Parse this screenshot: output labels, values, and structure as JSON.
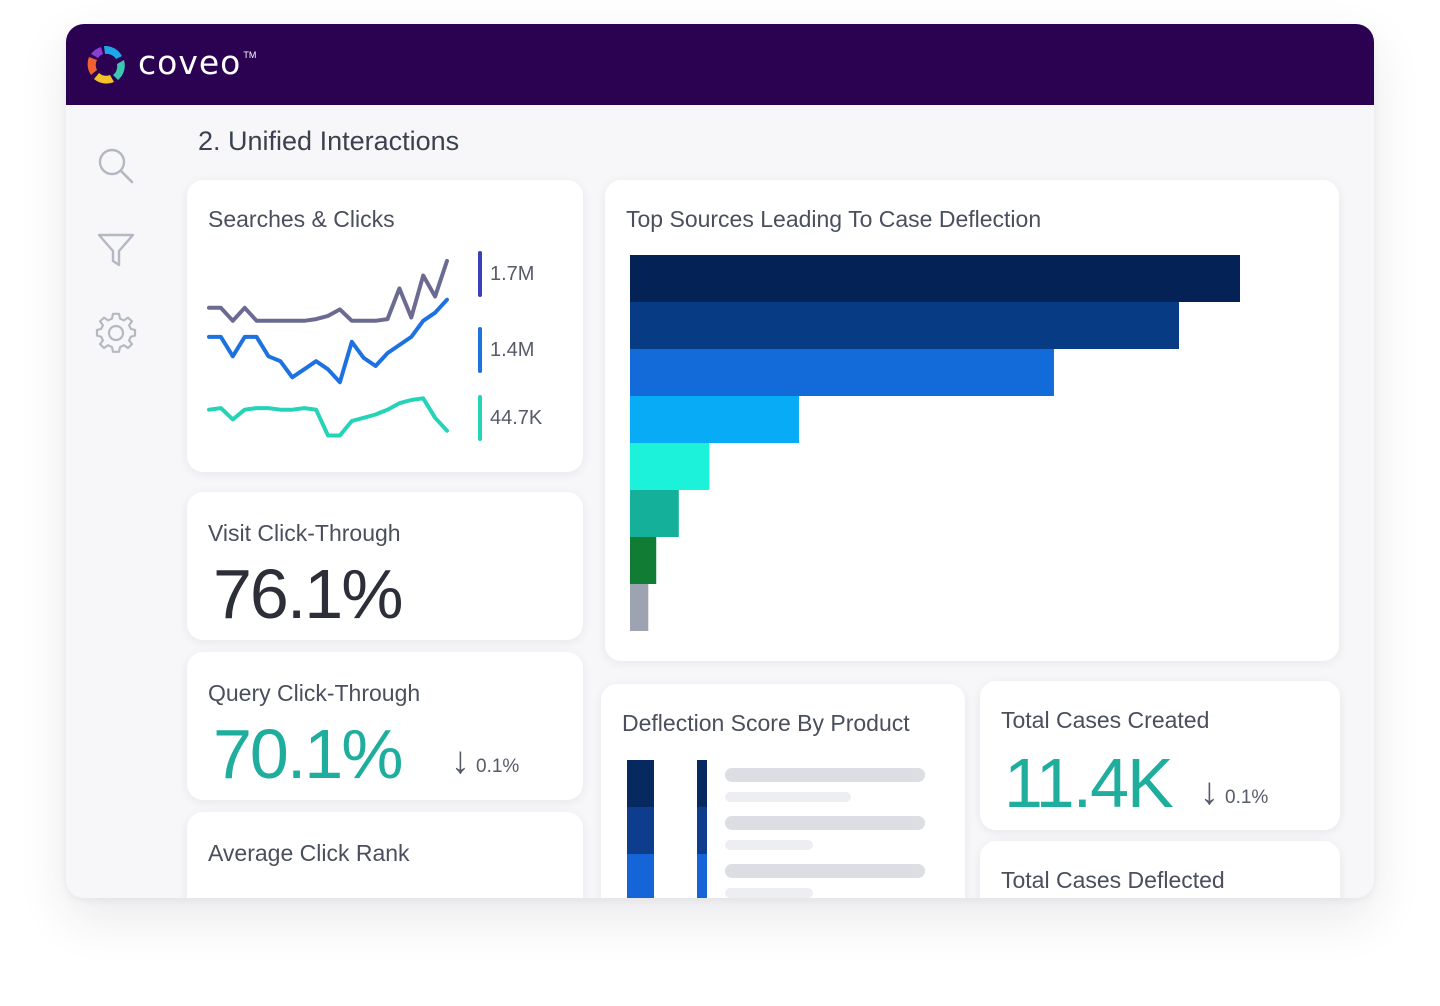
{
  "app": {
    "brand": "coveo",
    "trademark": "TM",
    "page_title": "2. Unified Interactions"
  },
  "sidebar": {
    "icons": [
      "search-icon",
      "filter-icon",
      "gear-icon"
    ]
  },
  "searches_clicks": {
    "title": "Searches & Clicks",
    "legend": [
      {
        "label": "1.7M",
        "color": "#3b3fb8"
      },
      {
        "label": "1.4M",
        "color": "#1e72e0"
      },
      {
        "label": "44.7K",
        "color": "#25d3b8"
      }
    ]
  },
  "visit_ctr": {
    "title": "Visit Click-Through",
    "value": "76.1%"
  },
  "query_ctr": {
    "title": "Query Click-Through",
    "value": "70.1%",
    "delta_arrow": "↓",
    "delta": "0.1%"
  },
  "avg_click_rank": {
    "title": "Average Click Rank"
  },
  "top_sources": {
    "title": "Top Sources Leading To Case Deflection"
  },
  "deflection_by_product": {
    "title": "Deflection Score By Product"
  },
  "total_cases_created": {
    "title": "Total Cases Created",
    "value": "11.4K",
    "delta_arrow": "↓",
    "delta": "0.1%"
  },
  "total_cases_deflected": {
    "title": "Total Cases Deflected"
  },
  "colors": {
    "header": "#2b0152",
    "teal": "#1fae9d",
    "line_purple": "#6b6a92",
    "line_blue": "#1e72e0",
    "line_teal": "#25d3b8"
  },
  "chart_data": [
    {
      "type": "line",
      "title": "Searches & Clicks",
      "x": [
        0,
        1,
        2,
        3,
        4,
        5,
        6,
        7,
        8,
        9,
        10,
        11,
        12,
        13,
        14,
        15,
        16,
        17,
        18,
        19,
        20
      ],
      "series": [
        {
          "name": "1.7M",
          "values": [
            0.63,
            0.63,
            0.55,
            0.63,
            0.55,
            0.55,
            0.55,
            0.55,
            0.55,
            0.56,
            0.58,
            0.62,
            0.55,
            0.55,
            0.55,
            0.56,
            0.75,
            0.57,
            0.83,
            0.7,
            0.92
          ]
        },
        {
          "name": "1.4M",
          "values": [
            0.45,
            0.45,
            0.33,
            0.45,
            0.45,
            0.33,
            0.3,
            0.2,
            0.25,
            0.3,
            0.25,
            0.17,
            0.42,
            0.32,
            0.27,
            0.35,
            0.4,
            0.45,
            0.55,
            0.6,
            0.68
          ]
        },
        {
          "name": "44.7K",
          "values": [
            0.0,
            0.01,
            -0.06,
            0.0,
            0.01,
            0.01,
            0.0,
            0.0,
            0.01,
            0.0,
            -0.16,
            -0.16,
            -0.07,
            -0.05,
            -0.03,
            0.0,
            0.04,
            0.06,
            0.07,
            -0.05,
            -0.13
          ]
        }
      ],
      "ylim": [
        -0.2,
        1.0
      ]
    },
    {
      "type": "bar",
      "orientation": "horizontal",
      "title": "Top Sources Leading To Case Deflection",
      "values": [
        100,
        90,
        69.5,
        27.7,
        13,
        8,
        4.3,
        3
      ],
      "colors": [
        "#052256",
        "#073c85",
        "#136ad9",
        "#08abf6",
        "#1bf2d9",
        "#14b09a",
        "#117c34",
        "#9da3b0"
      ],
      "xlim": [
        0,
        100
      ]
    },
    {
      "type": "bar",
      "orientation": "vertical-stacked",
      "title": "Deflection Score By Product",
      "series": [
        {
          "name": "segment-1",
          "values": [
            1,
            1
          ],
          "color": "#062a60"
        },
        {
          "name": "segment-2",
          "values": [
            1,
            1
          ],
          "color": "#0d3d8c"
        },
        {
          "name": "segment-3",
          "values": [
            1,
            1
          ],
          "color": "#1565d8"
        }
      ]
    }
  ]
}
